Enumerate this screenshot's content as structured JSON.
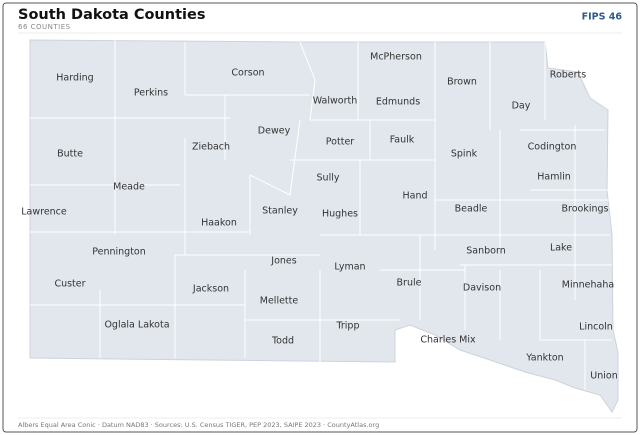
{
  "header": {
    "title": "South Dakota Counties",
    "subtitle": "66 COUNTIES",
    "badge": "FIPS 46"
  },
  "counties": [
    "Harding",
    "Perkins",
    "Corson",
    "McPherson",
    "Brown",
    "Roberts",
    "Walworth",
    "Edmunds",
    "Day",
    "Dewey",
    "Potter",
    "Faulk",
    "Codington",
    "Butte",
    "Ziebach",
    "Spink",
    "Hamlin",
    "Meade",
    "Sully",
    "Hand",
    "Lawrence",
    "Haakon",
    "Stanley",
    "Hughes",
    "Beadle",
    "Brookings",
    "Pennington",
    "Sanborn",
    "Lake",
    "Jones",
    "Lyman",
    "Custer",
    "Jackson",
    "Brule",
    "Davison",
    "Minnehaha",
    "Mellette",
    "Oglala Lakota",
    "Tripp",
    "Lincoln",
    "Todd",
    "Charles Mix",
    "Yankton",
    "Union"
  ],
  "footer": "Albers Equal Area Conic · Datum NAD83 · Sources: U.S. Census TIGER, PEP 2023, SAIPE 2023 · CountyAtlas.org"
}
